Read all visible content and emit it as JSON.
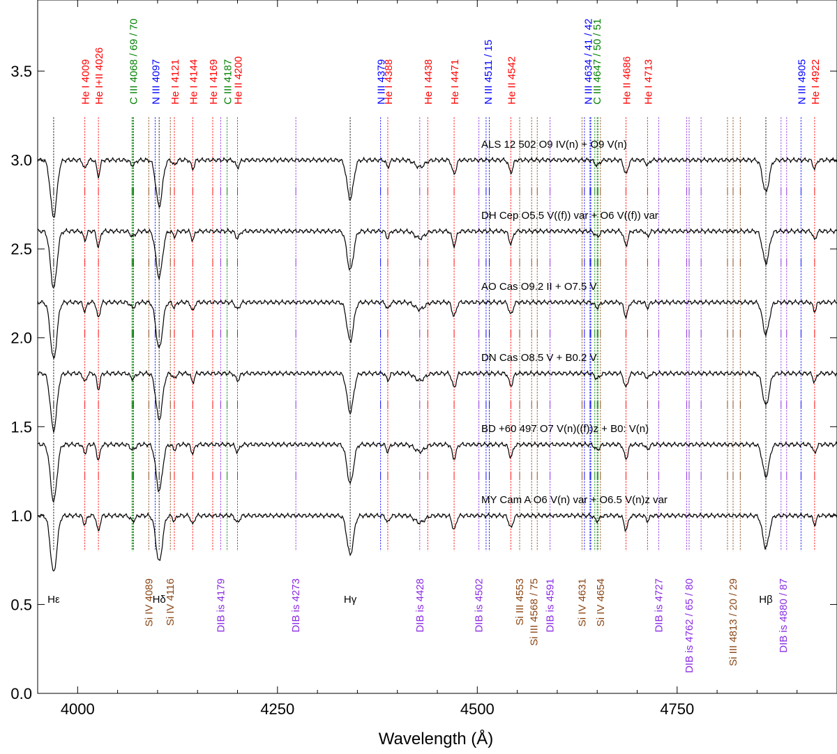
{
  "chart_data": {
    "type": "line",
    "title": "",
    "xlabel": "Wavelength (Å)",
    "ylabel": "",
    "xlim": [
      3950,
      4950
    ],
    "ylim": [
      0.0,
      3.9
    ],
    "x_ticks": [
      4000,
      4250,
      4500,
      4750
    ],
    "x_tick_labels": [
      "4000",
      "4250",
      "4500",
      "4750"
    ],
    "y_ticks": [
      0.0,
      0.5,
      1.0,
      1.5,
      2.0,
      2.5,
      3.0,
      3.5
    ],
    "y_tick_labels": [
      "0.0",
      "0.5",
      "1.0",
      "1.5",
      "2.0",
      "2.5",
      "3.0",
      "3.5"
    ],
    "grid": false,
    "series": [
      {
        "name": "ALS 12 502   O9 IV(n) + O9 V(n)",
        "offset": 3.0,
        "label_x": 4505,
        "label_y": 3.07
      },
      {
        "name": "DH Cep   O5.5 V((f)) var + O6 V((f)) var",
        "offset": 2.6,
        "label_x": 4505,
        "label_y": 2.67
      },
      {
        "name": "AO Cas   O9.2 II + O7.5 V",
        "offset": 2.2,
        "label_x": 4505,
        "label_y": 2.27
      },
      {
        "name": "DN Cas   O8.5 V + B0.2 V",
        "offset": 1.8,
        "label_x": 4505,
        "label_y": 1.87
      },
      {
        "name": "BD +60 497   O7 V(n)((f))z + B0: V(n)",
        "offset": 1.4,
        "label_x": 4505,
        "label_y": 1.47
      },
      {
        "name": "MY Cam A   O6 V(n) var + O6.5 V(n)z var",
        "offset": 1.0,
        "label_x": 4505,
        "label_y": 1.07
      }
    ],
    "top_labels": [
      {
        "text": "He I 4009",
        "x": 4009,
        "color": "#ff0000",
        "lines": [
          4009
        ]
      },
      {
        "text": "He I+II 4026",
        "x": 4026,
        "color": "#ff0000",
        "lines": [
          4026
        ]
      },
      {
        "text": "C III 4068 / 69 / 70",
        "x": 4069,
        "color": "#008000",
        "lines": [
          4068,
          4069,
          4070
        ]
      },
      {
        "text": "N III 4097",
        "x": 4097,
        "color": "#0000ff",
        "lines": [
          4097
        ]
      },
      {
        "text": "He I 4121",
        "x": 4121,
        "color": "#ff0000",
        "lines": [
          4121
        ]
      },
      {
        "text": "He I 4144",
        "x": 4144,
        "color": "#ff0000",
        "lines": [
          4144
        ]
      },
      {
        "text": "He I 4169",
        "x": 4169,
        "color": "#ff0000",
        "lines": [
          4169
        ]
      },
      {
        "text": "C III 4187",
        "x": 4187,
        "color": "#008000",
        "lines": [
          4187
        ]
      },
      {
        "text": "He II 4200",
        "x": 4200,
        "color": "#ff0000",
        "lines": [
          4200
        ]
      },
      {
        "text": "N III 4379",
        "x": 4379,
        "color": "#0000ff",
        "lines": [
          4379
        ]
      },
      {
        "text": "He I 4388",
        "x": 4388,
        "color": "#ff0000",
        "lines": [
          4388
        ]
      },
      {
        "text": "He I 4438",
        "x": 4438,
        "color": "#ff0000",
        "lines": [
          4438
        ]
      },
      {
        "text": "He I 4471",
        "x": 4471,
        "color": "#ff0000",
        "lines": [
          4471
        ]
      },
      {
        "text": "N III 4511 / 15",
        "x": 4513,
        "color": "#0000ff",
        "lines": [
          4511,
          4515
        ]
      },
      {
        "text": "He II 4542",
        "x": 4542,
        "color": "#ff0000",
        "lines": [
          4542
        ]
      },
      {
        "text": "N III 4634 / 41 / 42",
        "x": 4638,
        "color": "#0000ff",
        "lines": [
          4634,
          4641,
          4642
        ]
      },
      {
        "text": "C III 4647 / 50 / 51",
        "x": 4649,
        "color": "#008000",
        "lines": [
          4647,
          4650,
          4651
        ]
      },
      {
        "text": "He II 4686",
        "x": 4686,
        "color": "#ff0000",
        "lines": [
          4686
        ]
      },
      {
        "text": "He I 4713",
        "x": 4713,
        "color": "#ff0000",
        "lines": [
          4713
        ]
      },
      {
        "text": "N III 4905",
        "x": 4905,
        "color": "#0000ff",
        "lines": [
          4905
        ]
      },
      {
        "text": "He I 4922",
        "x": 4922,
        "color": "#ff0000",
        "lines": [
          4922
        ]
      }
    ],
    "bottom_labels": [
      {
        "text": "Hε",
        "x": 3970,
        "color": "#000000",
        "lines": [
          3970
        ],
        "rotated": false
      },
      {
        "text": "Si IV 4089",
        "x": 4089,
        "color": "#8b4513",
        "lines": [
          4089
        ],
        "rotated": true
      },
      {
        "text": "Hδ",
        "x": 4102,
        "color": "#000000",
        "lines": [
          4102
        ],
        "rotated": false
      },
      {
        "text": "Si IV 4116",
        "x": 4116,
        "color": "#8b4513",
        "lines": [
          4116
        ],
        "rotated": true
      },
      {
        "text": "DIB is 4179",
        "x": 4179,
        "color": "#8a2be2",
        "lines": [
          4179
        ],
        "rotated": true
      },
      {
        "text": "DIB is 4273",
        "x": 4273,
        "color": "#8a2be2",
        "lines": [
          4273
        ],
        "rotated": true
      },
      {
        "text": "Hγ",
        "x": 4341,
        "color": "#000000",
        "lines": [
          4341
        ],
        "rotated": false
      },
      {
        "text": "DIB is 4428",
        "x": 4428,
        "color": "#8a2be2",
        "lines": [
          4428
        ],
        "rotated": true
      },
      {
        "text": "DIB is 4502",
        "x": 4502,
        "color": "#8a2be2",
        "lines": [
          4502
        ],
        "rotated": true
      },
      {
        "text": "Si III 4553",
        "x": 4553,
        "color": "#8b4513",
        "lines": [
          4553
        ],
        "rotated": true
      },
      {
        "text": "Si III 4568 / 75",
        "x": 4571,
        "color": "#8b4513",
        "lines": [
          4568,
          4575
        ],
        "rotated": true
      },
      {
        "text": "DIB is 4591",
        "x": 4591,
        "color": "#8a2be2",
        "lines": [
          4591
        ],
        "rotated": true
      },
      {
        "text": "Si IV 4631",
        "x": 4631,
        "color": "#8b4513",
        "lines": [
          4631
        ],
        "rotated": true
      },
      {
        "text": "Si IV 4654",
        "x": 4654,
        "color": "#8b4513",
        "lines": [
          4654
        ],
        "rotated": true
      },
      {
        "text": "DIB is 4727",
        "x": 4727,
        "color": "#8a2be2",
        "lines": [
          4727
        ],
        "rotated": true
      },
      {
        "text": "DIB is 4762 / 65 / 80",
        "x": 4765,
        "color": "#8a2be2",
        "lines": [
          4762,
          4765,
          4780
        ],
        "rotated": true
      },
      {
        "text": "Si III 4813 / 20 / 29",
        "x": 4820,
        "color": "#8b4513",
        "lines": [
          4813,
          4820,
          4829
        ],
        "rotated": true
      },
      {
        "text": "Hβ",
        "x": 4861,
        "color": "#000000",
        "lines": [
          4861
        ],
        "rotated": false
      },
      {
        "text": "DIB is 4880 / 87",
        "x": 4883,
        "color": "#8a2be2",
        "lines": [
          4880,
          4887
        ],
        "rotated": true
      }
    ],
    "absorption_lines": [
      {
        "center": 3970,
        "depth": 0.32,
        "width": 4.0
      },
      {
        "center": 4009,
        "depth": 0.05,
        "width": 2.0
      },
      {
        "center": 4026,
        "depth": 0.09,
        "width": 2.0
      },
      {
        "center": 4069,
        "depth": 0.03,
        "width": 3.0
      },
      {
        "center": 4102,
        "depth": 0.26,
        "width": 4.0
      },
      {
        "center": 4121,
        "depth": 0.03,
        "width": 2.0
      },
      {
        "center": 4144,
        "depth": 0.05,
        "width": 2.0
      },
      {
        "center": 4200,
        "depth": 0.04,
        "width": 2.5
      },
      {
        "center": 4341,
        "depth": 0.22,
        "width": 4.0
      },
      {
        "center": 4388,
        "depth": 0.04,
        "width": 2.0
      },
      {
        "center": 4428,
        "depth": 0.04,
        "width": 6.0
      },
      {
        "center": 4471,
        "depth": 0.08,
        "width": 2.5
      },
      {
        "center": 4542,
        "depth": 0.07,
        "width": 2.5
      },
      {
        "center": 4650,
        "depth": 0.03,
        "width": 3.0
      },
      {
        "center": 4686,
        "depth": 0.08,
        "width": 2.5
      },
      {
        "center": 4713,
        "depth": 0.03,
        "width": 2.0
      },
      {
        "center": 4861,
        "depth": 0.18,
        "width": 4.0
      },
      {
        "center": 4922,
        "depth": 0.05,
        "width": 2.0
      }
    ]
  }
}
